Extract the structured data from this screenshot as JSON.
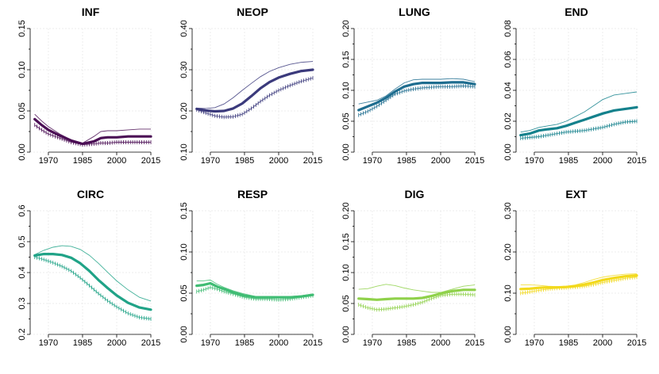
{
  "chart_data": [
    {
      "type": "line",
      "title": "INF",
      "ylim": [
        0,
        0.15
      ],
      "yticks": [
        "0.00",
        "0.05",
        "0.10",
        "0.15"
      ],
      "xlim": [
        1962,
        2015
      ],
      "xticks": [
        "1970",
        "1985",
        "2000",
        "2015"
      ],
      "color": "#4b0f55",
      "grid": true,
      "series": [
        {
          "role": "central",
          "x": [
            1964,
            1967,
            1970,
            1975,
            1980,
            1985,
            1990,
            1993,
            1996,
            2000,
            2005,
            2010,
            2015
          ],
          "values": [
            0.04,
            0.033,
            0.027,
            0.02,
            0.014,
            0.01,
            0.013,
            0.017,
            0.018,
            0.018,
            0.019,
            0.019,
            0.019
          ]
        },
        {
          "role": "upper",
          "x": [
            1964,
            1967,
            1970,
            1975,
            1980,
            1985,
            1990,
            1993,
            1996,
            2000,
            2005,
            2010,
            2015
          ],
          "values": [
            0.046,
            0.038,
            0.031,
            0.022,
            0.015,
            0.011,
            0.019,
            0.025,
            0.026,
            0.026,
            0.027,
            0.028,
            0.028
          ]
        },
        {
          "role": "lower",
          "x": [
            1964,
            1967,
            1970,
            1975,
            1980,
            1985,
            1990,
            1993,
            1996,
            2000,
            2005,
            2010,
            2015
          ],
          "values": [
            0.033,
            0.027,
            0.022,
            0.017,
            0.012,
            0.009,
            0.01,
            0.011,
            0.011,
            0.012,
            0.012,
            0.012,
            0.012
          ]
        }
      ]
    },
    {
      "type": "line",
      "title": "NEOP",
      "ylim": [
        0.1,
        0.4
      ],
      "yticks": [
        "0.10",
        "0.20",
        "0.30",
        "0.40"
      ],
      "xlim": [
        1962,
        2015
      ],
      "xticks": [
        "1970",
        "1985",
        "2000",
        "2015"
      ],
      "color": "#3b3a7c",
      "grid": true,
      "series": [
        {
          "role": "central",
          "x": [
            1964,
            1968,
            1972,
            1976,
            1980,
            1984,
            1988,
            1992,
            1996,
            2000,
            2005,
            2010,
            2015
          ],
          "values": [
            0.205,
            0.201,
            0.199,
            0.2,
            0.206,
            0.218,
            0.236,
            0.255,
            0.27,
            0.281,
            0.29,
            0.297,
            0.3
          ]
        },
        {
          "role": "upper",
          "x": [
            1964,
            1968,
            1972,
            1976,
            1980,
            1984,
            1988,
            1992,
            1996,
            2000,
            2005,
            2010,
            2015
          ],
          "values": [
            0.207,
            0.206,
            0.208,
            0.217,
            0.232,
            0.25,
            0.267,
            0.283,
            0.296,
            0.305,
            0.313,
            0.318,
            0.32
          ]
        },
        {
          "role": "lower",
          "x": [
            1964,
            1968,
            1972,
            1976,
            1980,
            1984,
            1988,
            1992,
            1996,
            2000,
            2005,
            2010,
            2015
          ],
          "values": [
            0.203,
            0.195,
            0.188,
            0.185,
            0.186,
            0.192,
            0.206,
            0.223,
            0.238,
            0.25,
            0.262,
            0.272,
            0.28
          ]
        }
      ]
    },
    {
      "type": "line",
      "title": "LUNG",
      "ylim": [
        0,
        0.2
      ],
      "yticks": [
        "0.00",
        "0.05",
        "0.10",
        "0.15",
        "0.20"
      ],
      "xlim": [
        1962,
        2015
      ],
      "xticks": [
        "1970",
        "1985",
        "2000",
        "2015"
      ],
      "color": "#1e6d8f",
      "grid": true,
      "series": [
        {
          "role": "central",
          "x": [
            1964,
            1968,
            1972,
            1976,
            1980,
            1984,
            1988,
            1992,
            1996,
            2000,
            2005,
            2010,
            2015
          ],
          "values": [
            0.068,
            0.074,
            0.08,
            0.088,
            0.098,
            0.106,
            0.11,
            0.112,
            0.112,
            0.112,
            0.113,
            0.113,
            0.11
          ]
        },
        {
          "role": "upper",
          "x": [
            1964,
            1968,
            1972,
            1976,
            1980,
            1984,
            1988,
            1992,
            1996,
            2000,
            2005,
            2010,
            2015
          ],
          "values": [
            0.078,
            0.081,
            0.084,
            0.091,
            0.102,
            0.112,
            0.117,
            0.118,
            0.118,
            0.118,
            0.119,
            0.118,
            0.114
          ]
        },
        {
          "role": "lower",
          "x": [
            1964,
            1968,
            1972,
            1976,
            1980,
            1984,
            1988,
            1992,
            1996,
            2000,
            2005,
            2010,
            2015
          ],
          "values": [
            0.06,
            0.066,
            0.074,
            0.084,
            0.094,
            0.099,
            0.102,
            0.104,
            0.105,
            0.106,
            0.106,
            0.107,
            0.106
          ]
        }
      ]
    },
    {
      "type": "line",
      "title": "END",
      "ylim": [
        0,
        0.08
      ],
      "yticks": [
        "0.00",
        "0.02",
        "0.04",
        "0.06",
        "0.08"
      ],
      "xlim": [
        1962,
        2015
      ],
      "xticks": [
        "1970",
        "1985",
        "2000",
        "2015"
      ],
      "color": "#14818c",
      "grid": true,
      "series": [
        {
          "role": "central",
          "x": [
            1964,
            1968,
            1972,
            1976,
            1980,
            1984,
            1988,
            1992,
            1996,
            2000,
            2005,
            2010,
            2015
          ],
          "values": [
            0.011,
            0.012,
            0.014,
            0.0148,
            0.0155,
            0.017,
            0.019,
            0.021,
            0.023,
            0.025,
            0.027,
            0.028,
            0.029
          ]
        },
        {
          "role": "upper",
          "x": [
            1964,
            1968,
            1972,
            1976,
            1980,
            1984,
            1988,
            1992,
            1996,
            2000,
            2005,
            2010,
            2015
          ],
          "values": [
            0.013,
            0.014,
            0.016,
            0.017,
            0.018,
            0.02,
            0.023,
            0.026,
            0.03,
            0.034,
            0.037,
            0.038,
            0.039
          ]
        },
        {
          "role": "lower",
          "x": [
            1964,
            1968,
            1972,
            1976,
            1980,
            1984,
            1988,
            1992,
            1996,
            2000,
            2005,
            2010,
            2015
          ],
          "values": [
            0.009,
            0.0095,
            0.01,
            0.011,
            0.012,
            0.013,
            0.0135,
            0.014,
            0.015,
            0.016,
            0.018,
            0.0195,
            0.02
          ]
        }
      ]
    },
    {
      "type": "line",
      "title": "CIRC",
      "ylim": [
        0.2,
        0.6
      ],
      "yticks": [
        "0.2",
        "0.3",
        "0.4",
        "0.5",
        "0.6"
      ],
      "xlim": [
        1962,
        2015
      ],
      "xticks": [
        "1970",
        "1985",
        "2000",
        "2015"
      ],
      "color": "#20a387",
      "grid": true,
      "series": [
        {
          "role": "central",
          "x": [
            1964,
            1968,
            1972,
            1976,
            1980,
            1984,
            1988,
            1992,
            1996,
            2000,
            2005,
            2010,
            2015
          ],
          "values": [
            0.455,
            0.46,
            0.46,
            0.457,
            0.448,
            0.43,
            0.405,
            0.376,
            0.35,
            0.326,
            0.302,
            0.287,
            0.28
          ]
        },
        {
          "role": "upper",
          "x": [
            1964,
            1968,
            1972,
            1976,
            1980,
            1984,
            1988,
            1992,
            1996,
            2000,
            2005,
            2010,
            2015
          ],
          "values": [
            0.458,
            0.472,
            0.482,
            0.487,
            0.485,
            0.475,
            0.456,
            0.43,
            0.401,
            0.373,
            0.344,
            0.32,
            0.308
          ]
        },
        {
          "role": "lower",
          "x": [
            1964,
            1968,
            1972,
            1976,
            1980,
            1984,
            1988,
            1992,
            1996,
            2000,
            2005,
            2010,
            2015
          ],
          "values": [
            0.45,
            0.442,
            0.432,
            0.42,
            0.405,
            0.383,
            0.358,
            0.332,
            0.309,
            0.289,
            0.268,
            0.255,
            0.25
          ]
        }
      ]
    },
    {
      "type": "line",
      "title": "RESP",
      "ylim": [
        0,
        0.15
      ],
      "yticks": [
        "0.00",
        "0.05",
        "0.10",
        "0.15"
      ],
      "xlim": [
        1962,
        2015
      ],
      "xticks": [
        "1970",
        "1985",
        "2000",
        "2015"
      ],
      "color": "#3fbc73",
      "grid": true,
      "series": [
        {
          "role": "central",
          "x": [
            1964,
            1967,
            1970,
            1973,
            1976,
            1980,
            1985,
            1990,
            1995,
            2000,
            2005,
            2010,
            2015
          ],
          "values": [
            0.059,
            0.06,
            0.062,
            0.058,
            0.055,
            0.051,
            0.047,
            0.045,
            0.045,
            0.045,
            0.045,
            0.046,
            0.048
          ]
        },
        {
          "role": "upper",
          "x": [
            1964,
            1967,
            1970,
            1973,
            1976,
            1980,
            1985,
            1990,
            1995,
            2000,
            2005,
            2010,
            2015
          ],
          "values": [
            0.065,
            0.065,
            0.066,
            0.061,
            0.057,
            0.053,
            0.049,
            0.046,
            0.046,
            0.046,
            0.046,
            0.047,
            0.049
          ]
        },
        {
          "role": "lower",
          "x": [
            1964,
            1967,
            1970,
            1973,
            1976,
            1980,
            1985,
            1990,
            1995,
            2000,
            2005,
            2010,
            2015
          ],
          "values": [
            0.052,
            0.054,
            0.057,
            0.055,
            0.052,
            0.049,
            0.045,
            0.043,
            0.043,
            0.042,
            0.043,
            0.045,
            0.047
          ]
        }
      ]
    },
    {
      "type": "line",
      "title": "DIG",
      "ylim": [
        0,
        0.2
      ],
      "yticks": [
        "0.00",
        "0.05",
        "0.10",
        "0.15",
        "0.20"
      ],
      "xlim": [
        1962,
        2015
      ],
      "xticks": [
        "1970",
        "1985",
        "2000",
        "2015"
      ],
      "color": "#8fd14a",
      "grid": true,
      "series": [
        {
          "role": "central",
          "x": [
            1964,
            1968,
            1972,
            1976,
            1980,
            1984,
            1988,
            1992,
            1996,
            2000,
            2005,
            2010,
            2015
          ],
          "values": [
            0.058,
            0.057,
            0.056,
            0.057,
            0.058,
            0.058,
            0.058,
            0.059,
            0.062,
            0.066,
            0.07,
            0.072,
            0.072
          ]
        },
        {
          "role": "upper",
          "x": [
            1964,
            1968,
            1972,
            1976,
            1980,
            1984,
            1988,
            1992,
            1996,
            2000,
            2005,
            2010,
            2015
          ],
          "values": [
            0.073,
            0.074,
            0.078,
            0.081,
            0.079,
            0.075,
            0.072,
            0.07,
            0.068,
            0.068,
            0.073,
            0.078,
            0.08
          ]
        },
        {
          "role": "lower",
          "x": [
            1964,
            1968,
            1972,
            1976,
            1980,
            1984,
            1988,
            1992,
            1996,
            2000,
            2005,
            2010,
            2015
          ],
          "values": [
            0.048,
            0.043,
            0.04,
            0.041,
            0.043,
            0.045,
            0.048,
            0.052,
            0.058,
            0.063,
            0.065,
            0.065,
            0.064
          ]
        }
      ]
    },
    {
      "type": "line",
      "title": "EXT",
      "ylim": [
        0,
        0.3
      ],
      "yticks": [
        "0.00",
        "0.10",
        "0.20",
        "0.30"
      ],
      "xlim": [
        1962,
        2015
      ],
      "xticks": [
        "1970",
        "1985",
        "2000",
        "2015"
      ],
      "color": "#f2d91c",
      "grid": true,
      "series": [
        {
          "role": "central",
          "x": [
            1964,
            1968,
            1972,
            1976,
            1980,
            1984,
            1988,
            1992,
            1996,
            2000,
            2005,
            2010,
            2015
          ],
          "values": [
            0.11,
            0.111,
            0.113,
            0.114,
            0.114,
            0.115,
            0.117,
            0.121,
            0.126,
            0.132,
            0.137,
            0.141,
            0.143
          ]
        },
        {
          "role": "upper",
          "x": [
            1964,
            1968,
            1972,
            1976,
            1980,
            1984,
            1988,
            1992,
            1996,
            2000,
            2005,
            2010,
            2015
          ],
          "values": [
            0.12,
            0.12,
            0.119,
            0.117,
            0.116,
            0.117,
            0.12,
            0.126,
            0.133,
            0.139,
            0.143,
            0.146,
            0.147
          ]
        },
        {
          "role": "lower",
          "x": [
            1964,
            1968,
            1972,
            1976,
            1980,
            1984,
            1988,
            1992,
            1996,
            2000,
            2005,
            2010,
            2015
          ],
          "values": [
            0.1,
            0.103,
            0.107,
            0.11,
            0.112,
            0.113,
            0.115,
            0.117,
            0.121,
            0.126,
            0.131,
            0.136,
            0.139
          ]
        }
      ]
    }
  ]
}
